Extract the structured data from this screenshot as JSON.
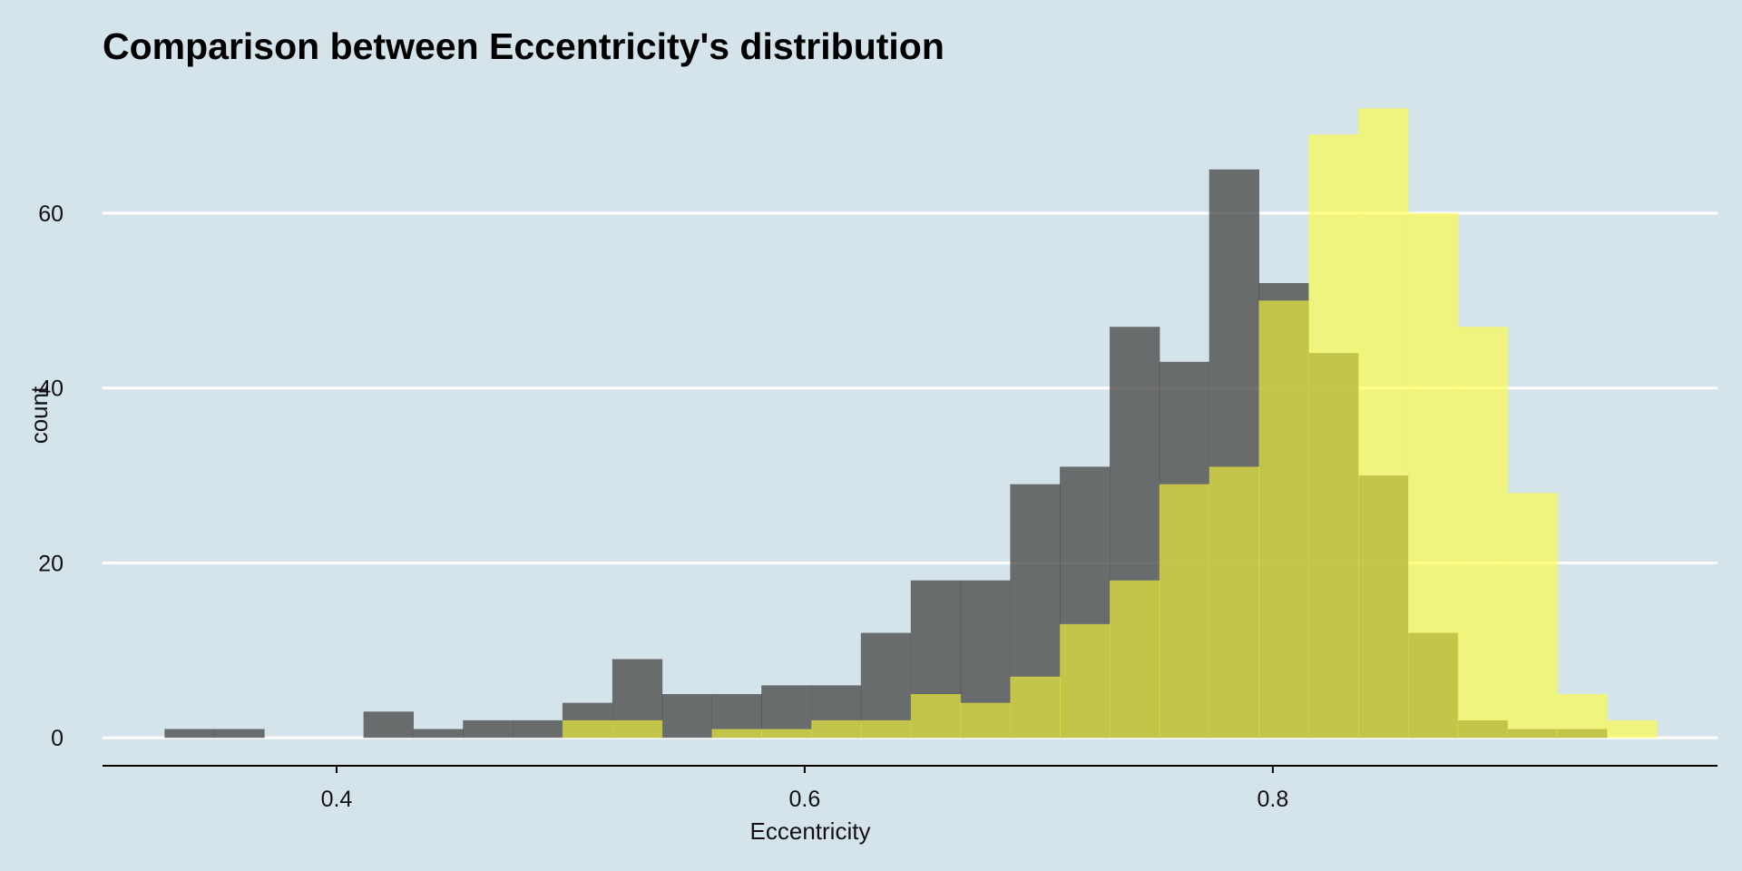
{
  "chart_data": {
    "type": "bar",
    "subtype": "overlaid-histogram",
    "title": "Comparison between Eccentricity's distribution",
    "xlabel": "Eccentricity",
    "ylabel": "count",
    "xlim": [
      0.3,
      0.99
    ],
    "ylim": [
      -3.3,
      74
    ],
    "x_ticks": [
      0.4,
      0.6,
      0.8
    ],
    "x_tick_labels": [
      "0.4",
      "0.6",
      "0.8"
    ],
    "y_ticks": [
      0,
      20,
      40,
      60
    ],
    "y_tick_labels": [
      "0",
      "20",
      "40",
      "60"
    ],
    "grid": "horizontal",
    "legend": "none",
    "bin_width": 0.02125,
    "bin_starts": [
      0.3265,
      0.3478,
      0.369,
      0.3903,
      0.4115,
      0.4328,
      0.454,
      0.4753,
      0.4965,
      0.5178,
      0.539,
      0.5603,
      0.5815,
      0.6028,
      0.624,
      0.6453,
      0.6665,
      0.6878,
      0.709,
      0.7303,
      0.7515,
      0.7728,
      0.794,
      0.8153,
      0.8365,
      0.8578,
      0.879,
      0.9003,
      0.9215,
      0.9428
    ],
    "series": [
      {
        "values": [
          1,
          1,
          0,
          0,
          3,
          1,
          2,
          2,
          4,
          9,
          5,
          5,
          6,
          6,
          12,
          18,
          18,
          29,
          31,
          47,
          43,
          65,
          52,
          44,
          30,
          12,
          2,
          1,
          1,
          0
        ],
        "color": "#4e4e4e",
        "opacity": 0.8
      },
      {
        "values": [
          0,
          0,
          0,
          0,
          0,
          0,
          0,
          0,
          2,
          2,
          0,
          1,
          1,
          2,
          2,
          5,
          4,
          7,
          13,
          18,
          29,
          31,
          50,
          69,
          72,
          60,
          47,
          28,
          5,
          2
        ],
        "color": "#ffff33",
        "opacity": 0.6
      }
    ],
    "colors": {
      "background": "#d5e4eb",
      "gridline": "#ffffff",
      "axis": "#000000"
    }
  }
}
